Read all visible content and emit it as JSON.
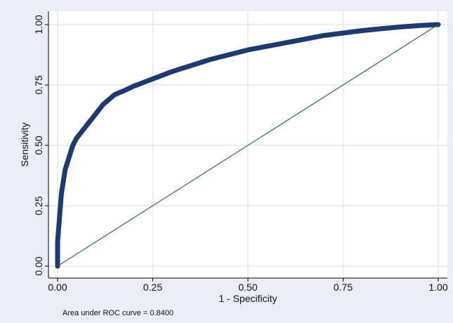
{
  "chart_data": {
    "type": "line",
    "xlabel": "1 - Specificity",
    "ylabel": "Sensitivity",
    "xlim": [
      0,
      1
    ],
    "ylim": [
      0,
      1
    ],
    "x_ticks": [
      "0.00",
      "0.25",
      "0.50",
      "0.75",
      "1.00"
    ],
    "y_ticks": [
      "0.00",
      "0.25",
      "0.50",
      "0.75",
      "1.00"
    ],
    "grid": true,
    "note": "Area under ROC curve = 0.8400",
    "series": [
      {
        "role": "roc-curve",
        "color": "#1f3a6e",
        "x": [
          0.0,
          0.0,
          0.005,
          0.01,
          0.015,
          0.02,
          0.03,
          0.04,
          0.05,
          0.07,
          0.09,
          0.1,
          0.12,
          0.15,
          0.18,
          0.2,
          0.25,
          0.3,
          0.35,
          0.4,
          0.45,
          0.5,
          0.55,
          0.6,
          0.65,
          0.7,
          0.75,
          0.8,
          0.85,
          0.9,
          0.95,
          1.0
        ],
        "y": [
          0.0,
          0.1,
          0.2,
          0.3,
          0.35,
          0.4,
          0.45,
          0.5,
          0.53,
          0.57,
          0.61,
          0.63,
          0.67,
          0.71,
          0.73,
          0.745,
          0.775,
          0.805,
          0.83,
          0.855,
          0.875,
          0.895,
          0.91,
          0.925,
          0.94,
          0.955,
          0.965,
          0.975,
          0.983,
          0.99,
          0.996,
          1.0
        ]
      },
      {
        "role": "reference-line",
        "color": "#2e6b57",
        "x": [
          0,
          1
        ],
        "y": [
          0,
          1
        ]
      }
    ]
  }
}
